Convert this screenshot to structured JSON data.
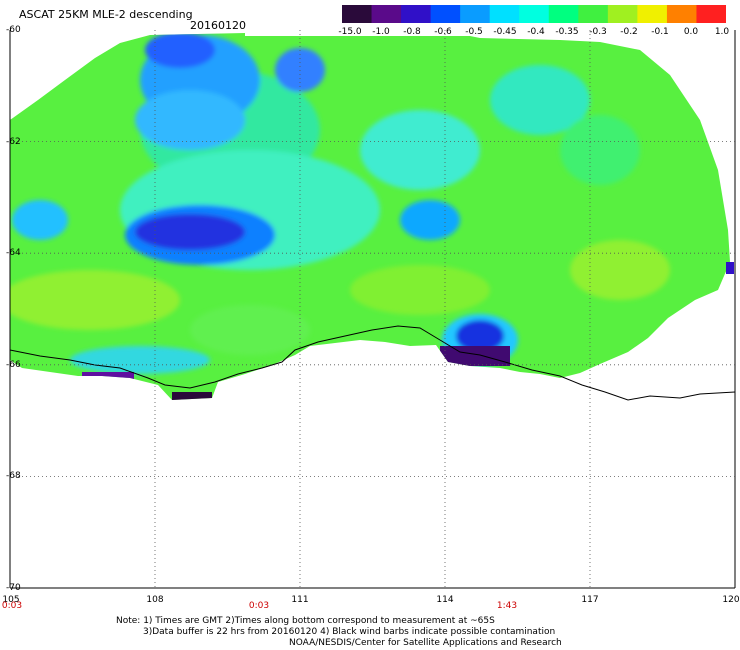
{
  "header": {
    "title": "ASCAT 25KM MLE-2 descending",
    "date": "20160120"
  },
  "colorbar": {
    "labels": [
      "-15.0",
      "-1.0",
      "-0.8",
      "-0.6",
      "-0.5",
      "-0.45",
      "-0.4",
      "-0.35",
      "-0.3",
      "-0.2",
      "-0.1",
      "0.0",
      "1.0"
    ],
    "colors": [
      "#2a0a3a",
      "#5a0a8a",
      "#3010c8",
      "#0050ff",
      "#0a9cff",
      "#00e0ff",
      "#00ffe0",
      "#00ff80",
      "#40f040",
      "#a0f020",
      "#f0f000",
      "#ff8000",
      "#ff2020"
    ]
  },
  "axes": {
    "lat_labels": [
      "-60",
      "-62",
      "-64",
      "-66",
      "-68",
      "-70"
    ],
    "lon_labels": [
      "105",
      "108",
      "111",
      "114",
      "117",
      "120"
    ],
    "lat_range": [
      -70,
      -60
    ],
    "lon_range": [
      105,
      120
    ]
  },
  "times": [
    "0:03",
    "0:03",
    "1:43"
  ],
  "notes": [
    "Note: 1) Times are GMT 2)Times along bottom correspond to measurement at ~65S",
    "3)Data buffer is 22 hrs from 20160120 4) Black wind barbs indicate possible contamination",
    "NOAA/NESDIS/Center for Satellite Applications and Research"
  ]
}
